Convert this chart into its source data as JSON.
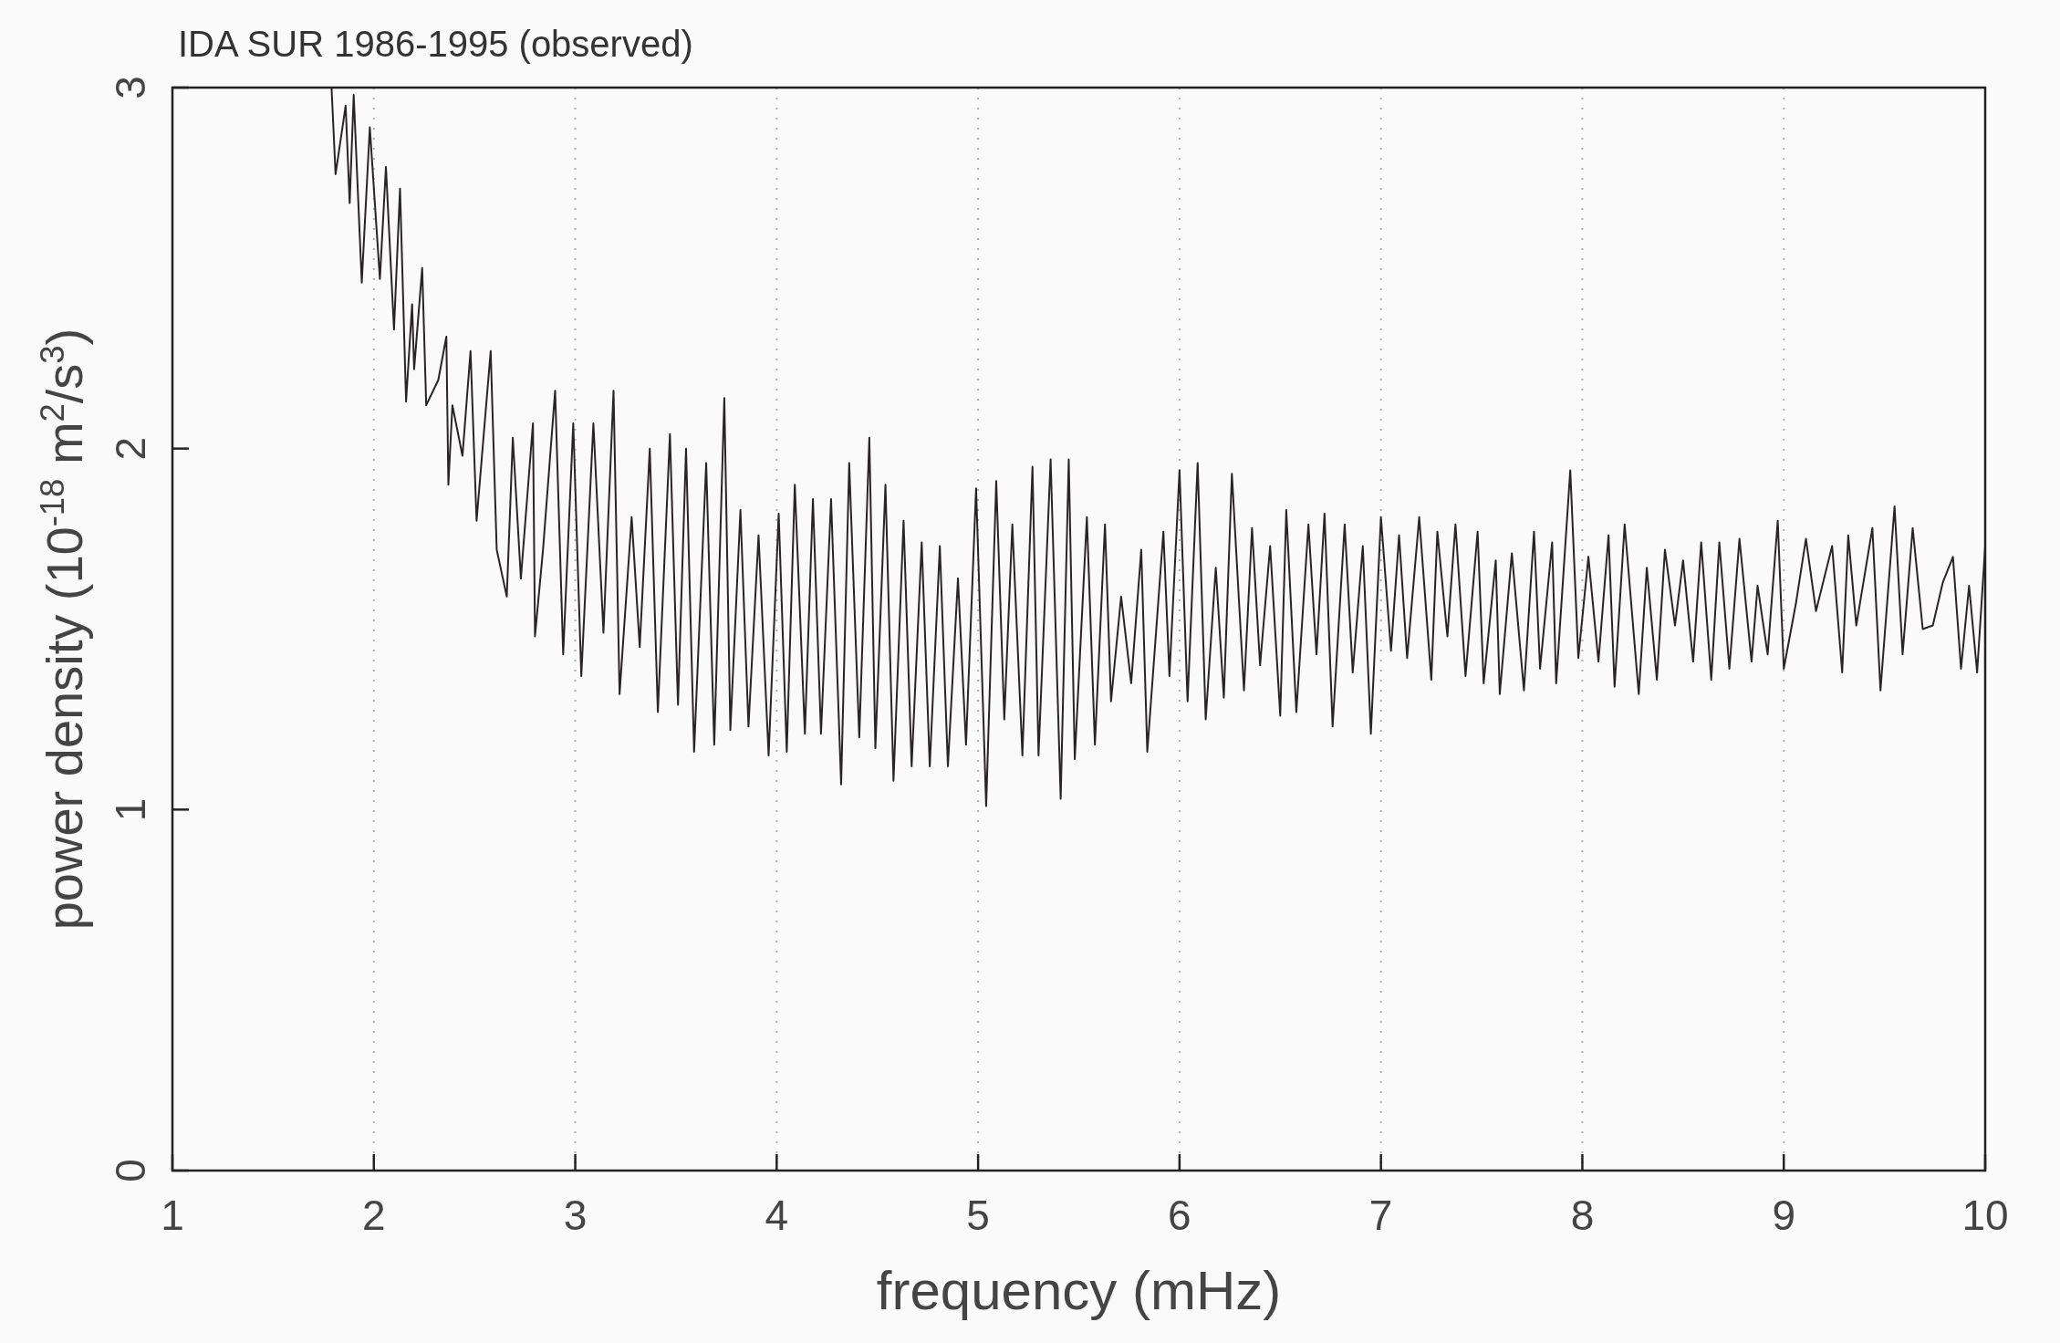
{
  "chart_data": {
    "type": "line",
    "title": "IDA SUR 1986-1995 (observed)",
    "xlabel": "frequency (mHz)",
    "ylabel": "power density (10$^{-18}$ m$^{2}$/s$^{3}$)",
    "xlim": [
      1,
      10
    ],
    "ylim": [
      0,
      3
    ],
    "xticks": [
      1,
      2,
      3,
      4,
      5,
      6,
      7,
      8,
      9,
      10
    ],
    "yticks": [
      0,
      1,
      2,
      3
    ],
    "grid": "x",
    "line_style": "solid",
    "series": [
      {
        "color": "#2a2426",
        "x": [
          1.79,
          1.81,
          1.86,
          1.88,
          1.9,
          1.94,
          1.98,
          2.03,
          2.06,
          2.1,
          2.13,
          2.16,
          2.19,
          2.2,
          2.24,
          2.26,
          2.32,
          2.36,
          2.37,
          2.39,
          2.44,
          2.48,
          2.51,
          2.58,
          2.61,
          2.66,
          2.69,
          2.73,
          2.79,
          2.8,
          2.84,
          2.9,
          2.94,
          2.99,
          3.03,
          3.09,
          3.14,
          3.19,
          3.22,
          3.28,
          3.32,
          3.37,
          3.41,
          3.47,
          3.51,
          3.55,
          3.59,
          3.65,
          3.69,
          3.74,
          3.77,
          3.82,
          3.86,
          3.91,
          3.96,
          4.01,
          4.05,
          4.09,
          4.14,
          4.18,
          4.22,
          4.27,
          4.32,
          4.36,
          4.41,
          4.46,
          4.49,
          4.54,
          4.58,
          4.63,
          4.67,
          4.72,
          4.76,
          4.81,
          4.85,
          4.9,
          4.94,
          4.99,
          5.04,
          5.09,
          5.13,
          5.17,
          5.22,
          5.27,
          5.3,
          5.36,
          5.41,
          5.45,
          5.48,
          5.54,
          5.58,
          5.63,
          5.66,
          5.71,
          5.76,
          5.81,
          5.84,
          5.92,
          5.95,
          6.0,
          6.04,
          6.09,
          6.13,
          6.18,
          6.22,
          6.26,
          6.32,
          6.36,
          6.4,
          6.45,
          6.5,
          6.53,
          6.58,
          6.64,
          6.68,
          6.72,
          6.76,
          6.82,
          6.86,
          6.91,
          6.95,
          7.0,
          7.05,
          7.09,
          7.13,
          7.19,
          7.25,
          7.28,
          7.33,
          7.37,
          7.42,
          7.48,
          7.51,
          7.57,
          7.59,
          7.65,
          7.71,
          7.76,
          7.79,
          7.85,
          7.87,
          7.94,
          7.98,
          8.03,
          8.08,
          8.13,
          8.16,
          8.21,
          8.28,
          8.32,
          8.37,
          8.41,
          8.46,
          8.5,
          8.55,
          8.59,
          8.64,
          8.68,
          8.73,
          8.78,
          8.84,
          8.87,
          8.92,
          8.97,
          9.0,
          9.06,
          9.11,
          9.16,
          9.24,
          9.29,
          9.32,
          9.36,
          9.44,
          9.48,
          9.55,
          9.59,
          9.64,
          9.69,
          9.74,
          9.79,
          9.84,
          9.88,
          9.92,
          9.96,
          10.0
        ],
        "values": [
          3.0,
          2.76,
          2.95,
          2.68,
          2.98,
          2.46,
          2.89,
          2.47,
          2.78,
          2.33,
          2.72,
          2.13,
          2.4,
          2.22,
          2.5,
          2.12,
          2.19,
          2.31,
          1.9,
          2.12,
          1.98,
          2.27,
          1.8,
          2.27,
          1.72,
          1.59,
          2.03,
          1.64,
          2.07,
          1.48,
          1.72,
          2.16,
          1.43,
          2.07,
          1.37,
          2.07,
          1.49,
          2.16,
          1.32,
          1.81,
          1.45,
          2.0,
          1.27,
          2.04,
          1.29,
          2.0,
          1.16,
          1.96,
          1.18,
          2.14,
          1.22,
          1.83,
          1.23,
          1.76,
          1.15,
          1.82,
          1.16,
          1.9,
          1.21,
          1.86,
          1.21,
          1.86,
          1.07,
          1.96,
          1.2,
          2.03,
          1.17,
          1.9,
          1.08,
          1.8,
          1.12,
          1.74,
          1.12,
          1.73,
          1.12,
          1.64,
          1.18,
          1.89,
          1.01,
          1.91,
          1.25,
          1.79,
          1.15,
          1.95,
          1.15,
          1.97,
          1.03,
          1.97,
          1.14,
          1.81,
          1.18,
          1.79,
          1.3,
          1.59,
          1.35,
          1.72,
          1.16,
          1.77,
          1.37,
          1.94,
          1.3,
          1.96,
          1.25,
          1.67,
          1.31,
          1.93,
          1.33,
          1.78,
          1.4,
          1.73,
          1.26,
          1.83,
          1.27,
          1.79,
          1.43,
          1.82,
          1.23,
          1.79,
          1.38,
          1.73,
          1.21,
          1.81,
          1.44,
          1.76,
          1.42,
          1.81,
          1.36,
          1.77,
          1.48,
          1.79,
          1.37,
          1.77,
          1.35,
          1.69,
          1.32,
          1.71,
          1.33,
          1.77,
          1.39,
          1.74,
          1.35,
          1.94,
          1.42,
          1.7,
          1.41,
          1.76,
          1.34,
          1.79,
          1.32,
          1.67,
          1.36,
          1.72,
          1.51,
          1.69,
          1.41,
          1.74,
          1.36,
          1.74,
          1.39,
          1.75,
          1.41,
          1.62,
          1.43,
          1.8,
          1.39,
          1.57,
          1.75,
          1.55,
          1.73,
          1.38,
          1.76,
          1.51,
          1.78,
          1.33,
          1.84,
          1.43,
          1.78,
          1.5,
          1.51,
          1.63,
          1.7,
          1.39,
          1.62,
          1.38,
          1.73
        ]
      }
    ]
  }
}
